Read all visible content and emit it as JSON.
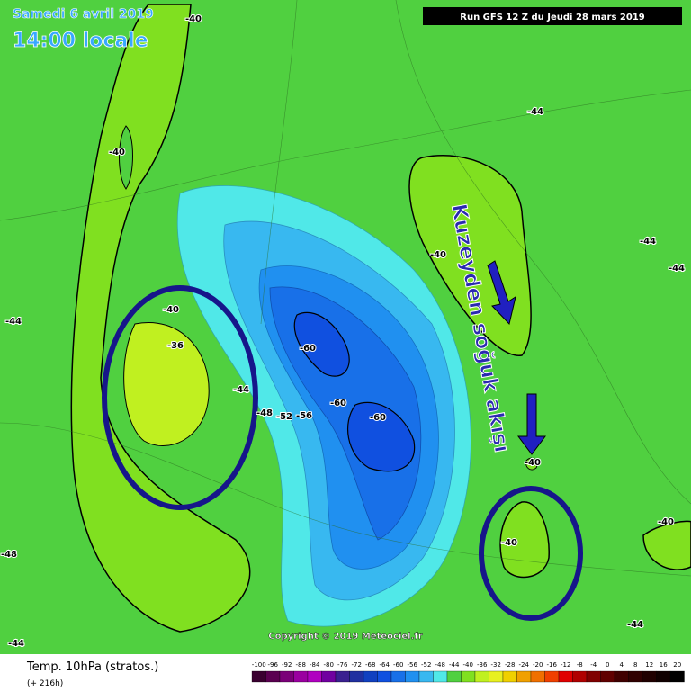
{
  "header": {
    "date": "Samedi 6 avril 2019",
    "time": "14:00 locale",
    "run": "Run GFS 12 Z du Jeudi 28 mars 2019"
  },
  "annotation": "Kuzeyden soğuk akışı",
  "contour_labels": [
    "-40",
    "-44",
    "-40",
    "-40",
    "-44",
    "-44",
    "-44",
    "-40",
    "-36",
    "-44",
    "-48",
    "-52",
    "-56",
    "-60",
    "-60",
    "-60",
    "-40",
    "-40",
    "-40",
    "-48",
    "-44",
    "-44"
  ],
  "copyright": "Copyright © 2019 Meteociel.fr",
  "footer": {
    "title": "Temp. 10hPa (stratos.)",
    "lead": "(+ 216h)"
  },
  "colorbar": {
    "labels": [
      -100,
      -96,
      -92,
      -88,
      -84,
      -80,
      -76,
      -72,
      -68,
      -64,
      -60,
      -56,
      -52,
      -48,
      -44,
      -40,
      -36,
      -32,
      -28,
      -24,
      -20,
      -16,
      -12,
      -8,
      -4,
      0,
      4,
      8,
      12,
      16,
      20
    ],
    "colors": [
      "#3a0030",
      "#5a0050",
      "#7a0078",
      "#9a00a0",
      "#b000c0",
      "#7000a0",
      "#3a2090",
      "#2030a0",
      "#1040c0",
      "#1050e0",
      "#1870e8",
      "#2090f0",
      "#38b8f0",
      "#50e8e8",
      "#50d040",
      "#80e020",
      "#c0f020",
      "#e8f020",
      "#f0d000",
      "#f0a000",
      "#f07000",
      "#f04000",
      "#e00000",
      "#b00000",
      "#800000",
      "#600000",
      "#400000",
      "#300000",
      "#200000",
      "#100000",
      "#000000"
    ]
  }
}
